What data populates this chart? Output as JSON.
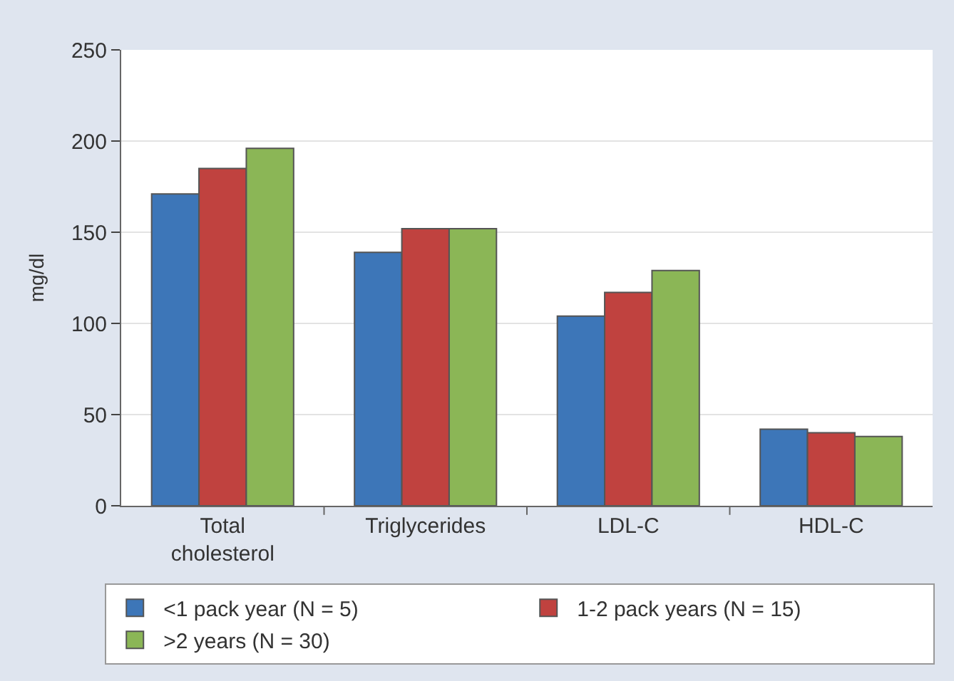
{
  "chart_data": {
    "type": "bar",
    "ylabel": "mg/dl",
    "categories": [
      "Total\ncholesterol",
      "Triglycerides",
      "LDL-C",
      "HDL-C"
    ],
    "series": [
      {
        "name": "<1 pack year (N = 5)",
        "color": "#3d76b8",
        "values": [
          171,
          139,
          104,
          42
        ]
      },
      {
        "name": "1-2 pack years (N = 15)",
        "color": "#c0423f",
        "values": [
          185,
          152,
          117,
          40
        ]
      },
      {
        "name": ">2 years (N = 30)",
        "color": "#8bb656",
        "values": [
          196,
          152,
          129,
          38
        ]
      }
    ],
    "ylim": [
      0,
      250
    ],
    "yticks": [
      0,
      50,
      100,
      150,
      200,
      250
    ],
    "grid": "y",
    "legend": "bottom"
  }
}
